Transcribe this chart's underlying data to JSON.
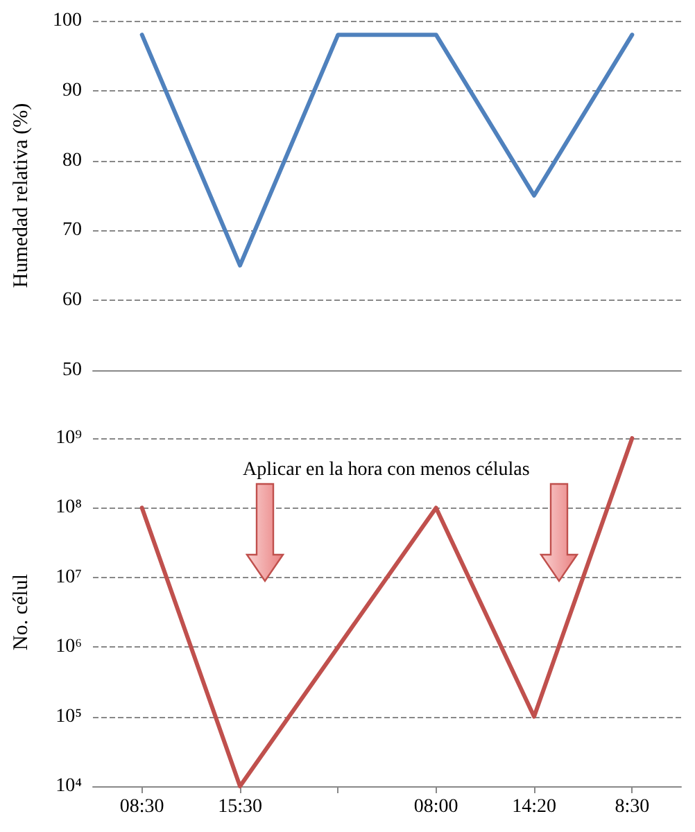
{
  "chart_data": [
    {
      "type": "line",
      "categories": [
        null,
        null,
        null,
        null,
        null,
        null
      ],
      "values": [
        98,
        65,
        98,
        98,
        75,
        98
      ],
      "color": "#4f81bd",
      "ylabel": "Humedad relativa (%)",
      "ylim": [
        50,
        100
      ],
      "yticks": [
        50,
        60,
        70,
        80,
        90,
        100
      ],
      "grid": "y",
      "tick_labels": "y",
      "marker": "none",
      "line_style": "solid"
    },
    {
      "type": "line",
      "categories": [
        "08:30",
        "15:30",
        null,
        "08:00",
        "14:20",
        "8:30"
      ],
      "values": [
        100000000,
        10000,
        1000000,
        100000000,
        100000,
        1000000000
      ],
      "color": "#c0504d",
      "ylabel": "No. célul",
      "log": true,
      "ylim": [
        10000,
        1000000000
      ],
      "yticks": [
        {
          "value": 10000,
          "label": "10⁴"
        },
        {
          "value": 100000,
          "label": "10⁵"
        },
        {
          "value": 1000000,
          "label": "10⁶"
        },
        {
          "value": 10000000,
          "label": "10⁷"
        },
        {
          "value": 100000000,
          "label": "10⁸"
        },
        {
          "value": 1000000000,
          "label": "10⁹"
        }
      ],
      "grid": "y",
      "marker": "none",
      "line_style": "solid",
      "annotations": [
        "Aplicar en la hora con menos células"
      ]
    }
  ]
}
